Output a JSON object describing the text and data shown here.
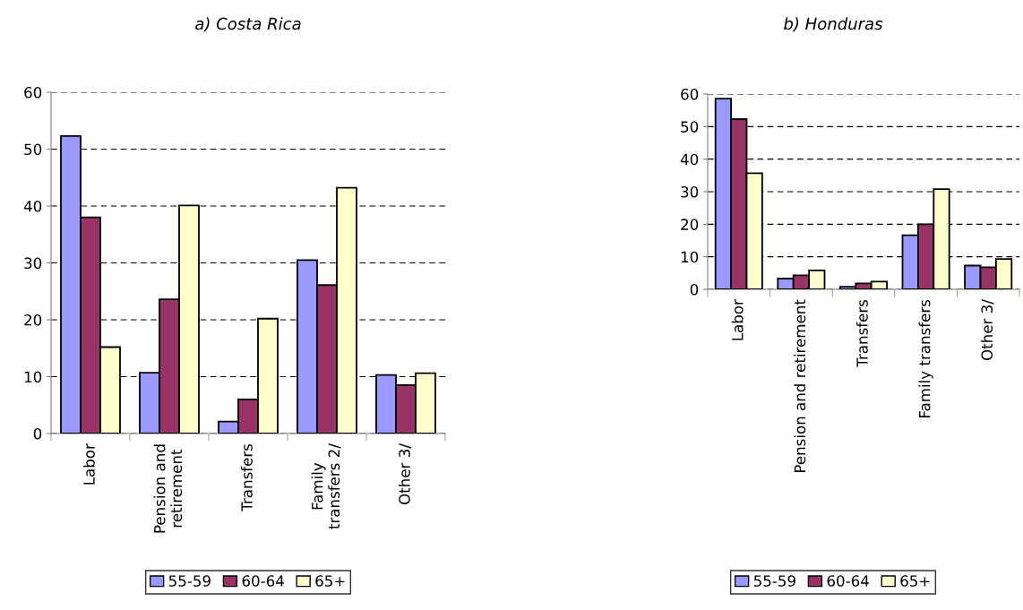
{
  "chart_data": [
    {
      "type": "bar",
      "title": "a) Costa Rica",
      "categories": [
        "Labor",
        "Pension and\nretirement",
        "Transfers",
        "Family\ntransfers 2/",
        "Other 3/"
      ],
      "series": [
        {
          "name": "55-59",
          "color": "#9999ff",
          "values": [
            52.3,
            10.7,
            2.1,
            30.5,
            10.3
          ]
        },
        {
          "name": "60-64",
          "color": "#993366",
          "values": [
            38.0,
            23.6,
            6.0,
            26.1,
            8.5
          ]
        },
        {
          "name": "65+",
          "color": "#ffffcc",
          "values": [
            15.2,
            40.1,
            20.2,
            43.2,
            10.6
          ]
        }
      ],
      "ylim": [
        0,
        60
      ],
      "yticks": [
        0,
        10,
        20,
        30,
        40,
        50,
        60
      ],
      "grid": "y",
      "legend": "bottom"
    },
    {
      "type": "bar",
      "title": "b) Honduras",
      "categories": [
        "Labor",
        "Pension and retirement",
        "Transfers",
        "Family transfers",
        "Other 3/"
      ],
      "series": [
        {
          "name": "55-59",
          "color": "#9999ff",
          "values": [
            58.6,
            3.3,
            0.8,
            16.6,
            7.3
          ]
        },
        {
          "name": "60-64",
          "color": "#993366",
          "values": [
            52.3,
            4.3,
            1.8,
            20.0,
            6.8
          ]
        },
        {
          "name": "65+",
          "color": "#ffffcc",
          "values": [
            35.7,
            5.8,
            2.4,
            30.8,
            9.3
          ]
        }
      ],
      "ylim": [
        0,
        60
      ],
      "yticks": [
        0,
        10,
        20,
        30,
        40,
        50,
        60
      ],
      "grid": "y",
      "legend": "bottom"
    }
  ]
}
